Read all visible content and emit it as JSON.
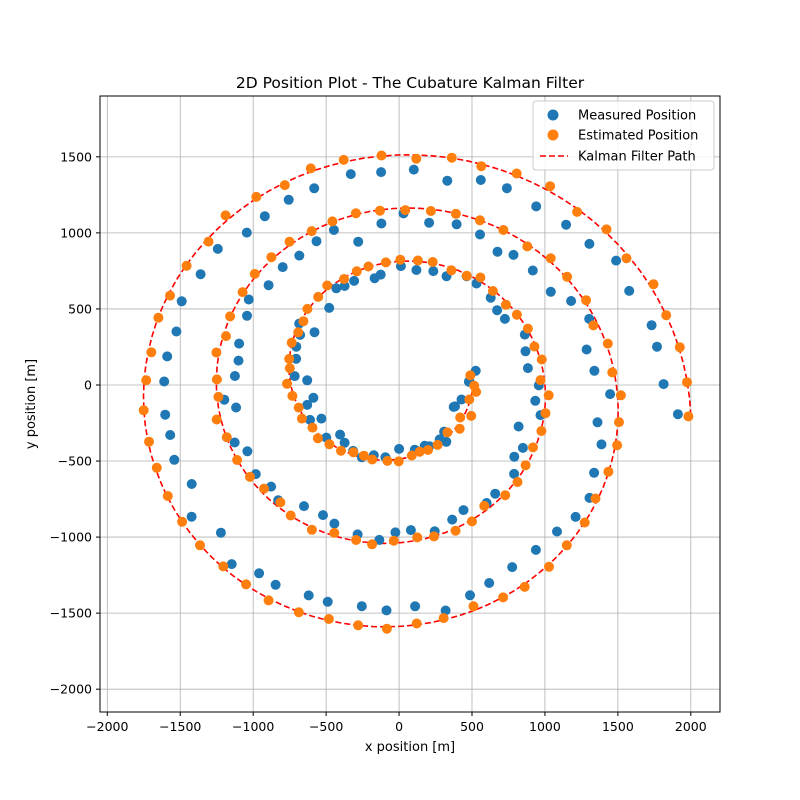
{
  "chart_data": {
    "type": "scatter",
    "title": "2D Position Plot - The Cubature Kalman Filter",
    "xlabel": "x position [m]",
    "ylabel": "y position [m]",
    "xlim": [
      -2050,
      2200
    ],
    "ylim": [
      -2150,
      1900
    ],
    "xticks": [
      -2000,
      -1500,
      -1000,
      -500,
      0,
      500,
      1000,
      1500,
      2000
    ],
    "yticks": [
      -2000,
      -1500,
      -1000,
      -500,
      0,
      500,
      1000,
      1500
    ],
    "grid": true,
    "legend": "top-right",
    "spiral": {
      "r_start": 2000,
      "r_end": 500,
      "turns": 3,
      "angle_start_deg": 0,
      "angle_direction": "counterclockwise",
      "y_offset_start": -400,
      "y_offset_end": 200,
      "samples": 300
    },
    "series": [
      {
        "name": "Measured Position",
        "kind": "scatter",
        "color": "#1f77b4",
        "radius_scale": 0.93,
        "noise_m": 25
      },
      {
        "name": "Estimated Position",
        "kind": "scatter",
        "color": "#ff7f0e",
        "radius_scale": 1.0,
        "noise_m": 10
      },
      {
        "name": "Kalman Filter Path",
        "kind": "line",
        "color": "#ff0000",
        "style": "dashed"
      }
    ]
  }
}
